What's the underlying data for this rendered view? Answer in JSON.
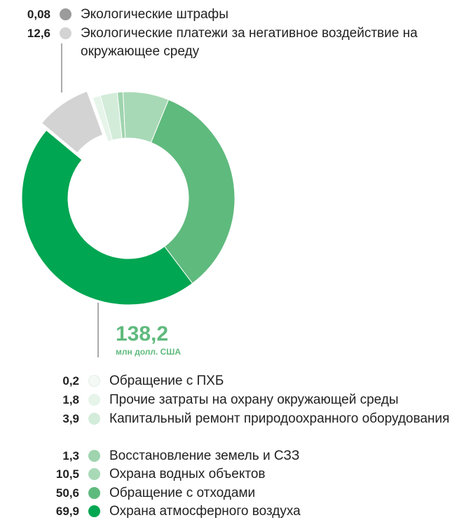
{
  "chart_data": {
    "type": "donut",
    "categories": [
      "Экологические штрафы",
      "Экологические платежи за негативное воздействие на окружающее среду",
      "Обращение с ПХБ",
      "Прочие затраты на охрану окружающей среды",
      "Капитальный ремонт природоохранного оборудования",
      "Восстановление земель и СЗЗ",
      "Охрана водных объектов",
      "Обращение с отходами",
      "Охрана атмосферного воздуха"
    ],
    "values": [
      0.08,
      12.6,
      0.2,
      1.8,
      3.9,
      1.3,
      10.5,
      50.6,
      69.9
    ],
    "value_labels": [
      "0,08",
      "12,6",
      "0,2",
      "1,8",
      "3,9",
      "1,3",
      "10,5",
      "50,6",
      "69,9"
    ],
    "colors": [
      "#9b9b9b",
      "#d3d3d3",
      "#f4f9f5",
      "#e6f4ea",
      "#d3ecda",
      "#9fd4ae",
      "#a8d9b6",
      "#5fba7d",
      "#00a651"
    ],
    "explode": [
      true,
      true,
      false,
      false,
      false,
      false,
      false,
      false,
      false
    ],
    "total": {
      "value": 138.2,
      "label": "138,2"
    },
    "unit": "млн долл. США"
  }
}
